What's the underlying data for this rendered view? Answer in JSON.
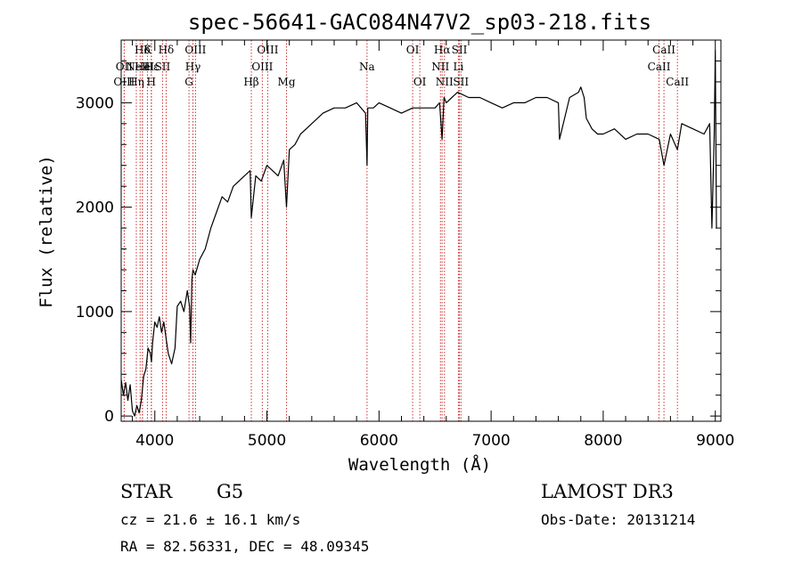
{
  "chart_data": {
    "type": "line",
    "title": "spec-56641-GAC084N47V2_sp03-218.fits",
    "xlabel": "Wavelength (Å)",
    "ylabel": "Flux (relative)",
    "xlim": [
      3700,
      9050
    ],
    "ylim": [
      -50,
      3600
    ],
    "x_ticks": [
      4000,
      5000,
      6000,
      7000,
      8000,
      9000
    ],
    "y_ticks": [
      0,
      1000,
      2000,
      3000
    ],
    "grid": false,
    "series": [
      {
        "x": [
          3700,
          3720,
          3740,
          3760,
          3780,
          3800,
          3820,
          3840,
          3860,
          3880,
          3900,
          3920,
          3940,
          3960,
          3970,
          3980,
          4000,
          4020,
          4040,
          4060,
          4080,
          4100,
          4120,
          4150,
          4180,
          4200,
          4230,
          4260,
          4290,
          4310,
          4320,
          4330,
          4340,
          4360,
          4400,
          4450,
          4500,
          4550,
          4600,
          4650,
          4700,
          4750,
          4800,
          4850,
          4861,
          4900,
          4950,
          5000,
          5050,
          5100,
          5150,
          5175,
          5200,
          5250,
          5300,
          5350,
          5400,
          5500,
          5600,
          5700,
          5800,
          5880,
          5893,
          5900,
          5950,
          6000,
          6100,
          6200,
          6300,
          6400,
          6500,
          6540,
          6563,
          6580,
          6600,
          6650,
          6700,
          6800,
          6900,
          7000,
          7100,
          7200,
          7300,
          7400,
          7500,
          7600,
          7610,
          7700,
          7780,
          7800,
          7830,
          7850,
          7900,
          7950,
          8000,
          8100,
          8200,
          8300,
          8400,
          8500,
          8542,
          8600,
          8662,
          8700,
          8800,
          8900,
          8950,
          8970,
          8990,
          9000,
          9010
        ],
        "y": [
          350,
          200,
          320,
          150,
          300,
          50,
          0,
          100,
          30,
          150,
          380,
          450,
          650,
          600,
          520,
          700,
          900,
          850,
          950,
          800,
          900,
          750,
          600,
          500,
          650,
          1050,
          1100,
          1000,
          1200,
          1050,
          700,
          1300,
          1400,
          1350,
          1500,
          1600,
          1800,
          1950,
          2100,
          2050,
          2200,
          2250,
          2300,
          2350,
          1900,
          2300,
          2250,
          2400,
          2350,
          2300,
          2450,
          2000,
          2550,
          2600,
          2700,
          2750,
          2800,
          2900,
          2950,
          2950,
          3000,
          2900,
          2400,
          2950,
          2950,
          3000,
          2950,
          2900,
          2950,
          2950,
          2950,
          3000,
          2650,
          3050,
          3000,
          3050,
          3100,
          3050,
          3050,
          3000,
          2950,
          3000,
          3000,
          3050,
          3050,
          3000,
          2650,
          3050,
          3100,
          3150,
          3050,
          2850,
          2750,
          2700,
          2700,
          2750,
          2650,
          2700,
          2700,
          2650,
          2400,
          2700,
          2550,
          2800,
          2750,
          2700,
          2800,
          1800,
          2700,
          3500,
          1800
        ]
      }
    ],
    "lines": [
      {
        "label": "Hδ",
        "x": 3890,
        "row": 0
      },
      {
        "label": "OII",
        "x": 3727,
        "row": 1
      },
      {
        "label": "OIII",
        "x": 3727,
        "row": 2
      },
      {
        "label": "He",
        "x": 3889,
        "row": 1
      },
      {
        "label": "Hη",
        "x": 3835,
        "row": 2
      },
      {
        "label": "K",
        "x": 3934,
        "row": 0
      },
      {
        "label": "NeIII",
        "x": 3869,
        "row": 1
      },
      {
        "label": "Hε",
        "x": 3970,
        "row": 1
      },
      {
        "label": "SII",
        "x": 4069,
        "row": 1
      },
      {
        "label": "H",
        "x": 3968,
        "row": 2
      },
      {
        "label": "Hδ",
        "x": 4101,
        "row": 0
      },
      {
        "label": "OIII",
        "x": 4363,
        "row": 0
      },
      {
        "label": "Hγ",
        "x": 4340,
        "row": 1
      },
      {
        "label": "G",
        "x": 4305,
        "row": 2
      },
      {
        "label": "Hβ",
        "x": 4861,
        "row": 2
      },
      {
        "label": "OIII",
        "x": 5007,
        "row": 0
      },
      {
        "label": "OIII",
        "x": 4959,
        "row": 1
      },
      {
        "label": "Mg",
        "x": 5175,
        "row": 2
      },
      {
        "label": "Na",
        "x": 5893,
        "row": 1
      },
      {
        "label": "OI",
        "x": 6300,
        "row": 0
      },
      {
        "label": "OI",
        "x": 6364,
        "row": 2
      },
      {
        "label": "Hα",
        "x": 6563,
        "row": 0
      },
      {
        "label": "NII",
        "x": 6548,
        "row": 1
      },
      {
        "label": "NII",
        "x": 6584,
        "row": 2
      },
      {
        "label": "SII",
        "x": 6717,
        "row": 0
      },
      {
        "label": "Li",
        "x": 6708,
        "row": 1
      },
      {
        "label": "SII",
        "x": 6731,
        "row": 2
      },
      {
        "label": "CaII",
        "x": 8542,
        "row": 0
      },
      {
        "label": "CaII",
        "x": 8498,
        "row": 1
      },
      {
        "label": "CaII",
        "x": 8662,
        "row": 2
      }
    ]
  },
  "info": {
    "class": "STAR",
    "subclass": "G5",
    "survey": "LAMOST DR3",
    "cz": "cz = 21.6 ± 16.1 km/s",
    "obs_date": "Obs-Date: 20131214",
    "radec": "RA =  82.56331, DEC =  48.09345"
  },
  "colors": {
    "spectrum": "#000000",
    "line_marker": "#cc3333",
    "axes": "#000000",
    "background": "#ffffff"
  }
}
